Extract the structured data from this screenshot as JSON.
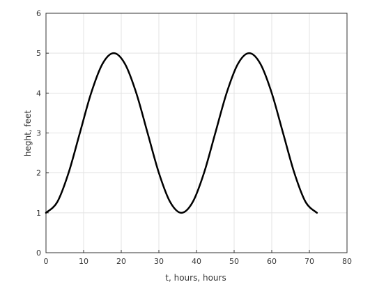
{
  "chart_data": {
    "type": "line",
    "title": "",
    "xlabel": "t, hours, hours",
    "ylabel": "heght, feet",
    "xlim": [
      0,
      80
    ],
    "ylim": [
      0,
      6
    ],
    "xticks": [
      "0",
      "10",
      "20",
      "30",
      "40",
      "50",
      "60",
      "70",
      "80"
    ],
    "yticks": [
      "0",
      "1",
      "2",
      "3",
      "4",
      "5",
      "6"
    ],
    "grid": true,
    "series": [
      {
        "color": "#000000",
        "x": [
          0,
          3,
          6,
          9,
          12,
          15,
          18,
          21,
          24,
          27,
          30,
          33,
          36,
          39,
          42,
          45,
          48,
          51,
          54,
          57,
          60,
          63,
          66,
          69,
          72
        ],
        "y": [
          1.0,
          1.27,
          2.0,
          3.0,
          4.0,
          4.73,
          5.0,
          4.73,
          4.0,
          3.0,
          2.0,
          1.27,
          1.0,
          1.27,
          2.0,
          3.0,
          4.0,
          4.73,
          5.0,
          4.73,
          4.0,
          3.0,
          2.0,
          1.27,
          1.0
        ]
      }
    ]
  }
}
